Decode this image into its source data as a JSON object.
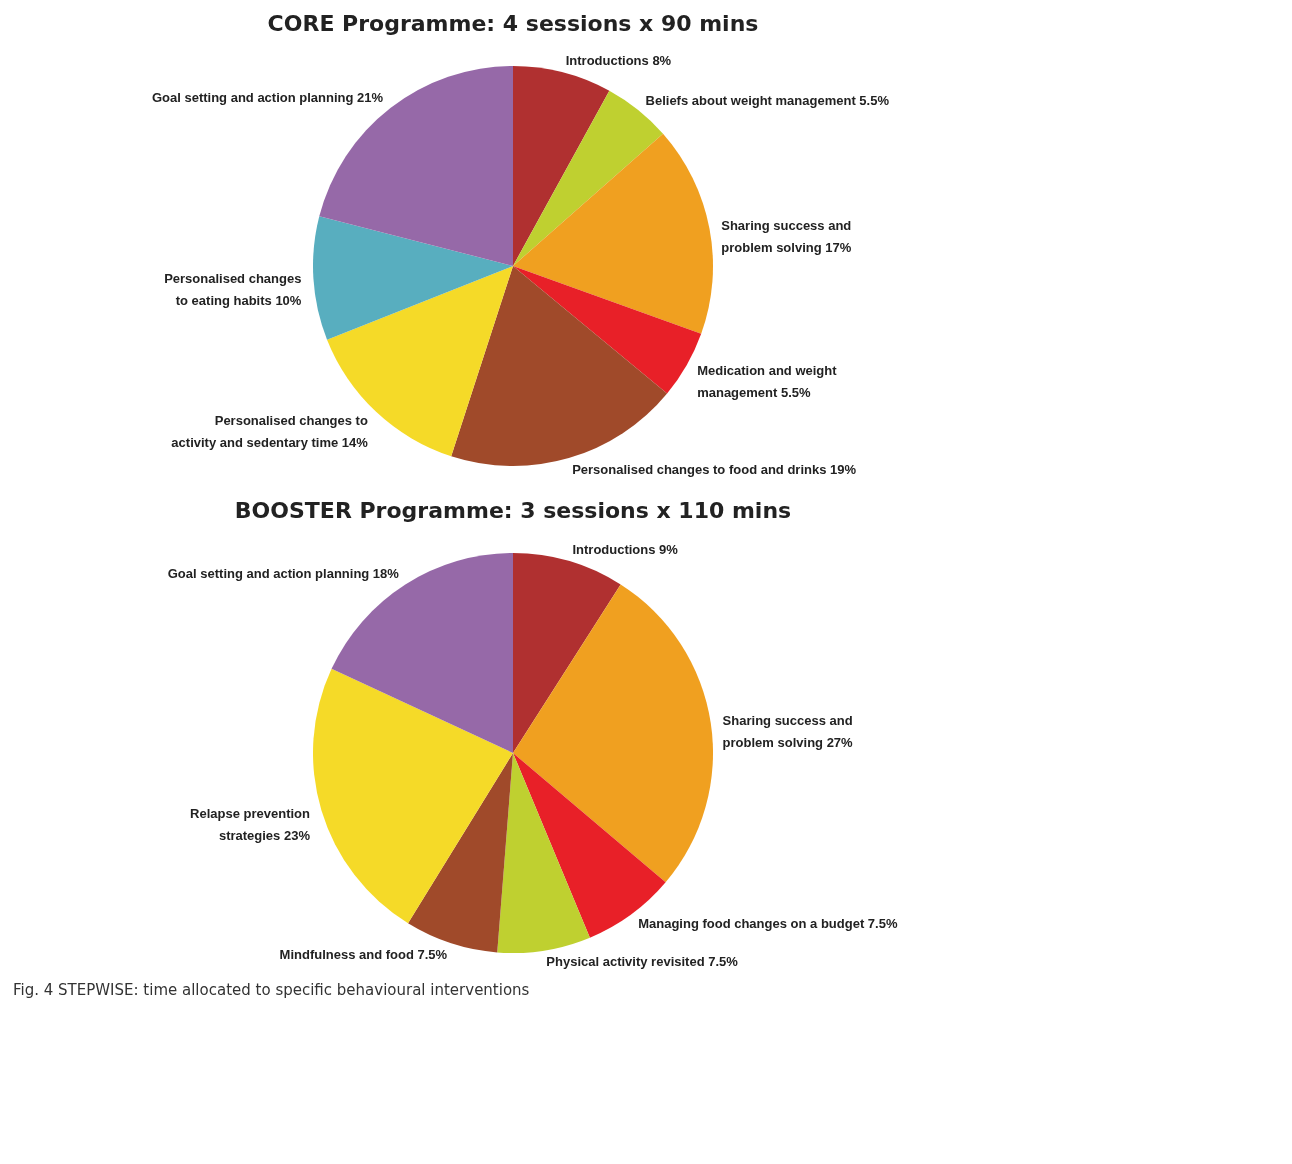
{
  "chart_data": [
    {
      "type": "pie",
      "title": "CORE Programme: 4 sessions x 90 mins",
      "categories": [
        "Introductions",
        "Beliefs about weight management",
        "Sharing success and problem solving",
        "Medication and weight management",
        "Personalised changes to food and drinks",
        "Personalised changes to activity and sedentary time",
        "Personalised changes to eating habits",
        "Goal setting and action planning"
      ],
      "values": [
        8,
        5.5,
        17,
        5.5,
        19,
        14,
        10,
        21
      ],
      "value_labels": [
        "8%",
        "5.5%",
        "17%",
        "5.5%",
        "19%",
        "14%",
        "10%",
        "21%"
      ],
      "colors": [
        "#b03030",
        "#bfd030",
        "#f0a020",
        "#e82028",
        "#a04a2a",
        "#f5da28",
        "#58aebf",
        "#9669a8"
      ]
    },
    {
      "type": "pie",
      "title": "BOOSTER Programme: 3 sessions x 110 mins",
      "categories": [
        "Introductions",
        "Sharing success and problem solving",
        "Managing food changes on a budget",
        "Physical activity revisited",
        "Mindfulness and food",
        "Relapse prevention strategies",
        "Goal setting and action planning"
      ],
      "values": [
        9,
        27,
        7.5,
        7.5,
        7.5,
        23,
        18
      ],
      "value_labels": [
        "9%",
        "27%",
        "7.5%",
        "7.5%",
        "7.5%",
        "23%",
        "18%"
      ],
      "colors": [
        "#b03030",
        "#f0a020",
        "#e82028",
        "#bfd030",
        "#a04a2a",
        "#f5da28",
        "#9669a8"
      ],
      "annotations": [
        "Fig. 4 STEPWISE: time allocated to specific behavioural interventions"
      ]
    }
  ]
}
